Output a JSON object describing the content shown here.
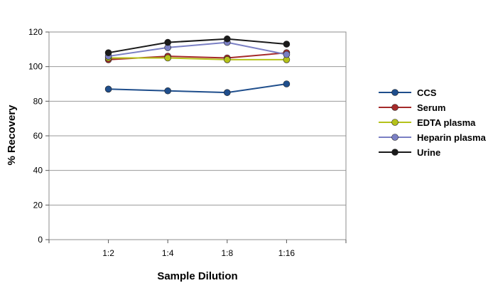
{
  "chart_data": {
    "type": "line",
    "title": "",
    "xlabel": "Sample Dilution",
    "ylabel": "% Recovery",
    "categories": [
      "1:2",
      "1:4",
      "1:8",
      "1:16"
    ],
    "ylim": [
      0,
      120
    ],
    "yticks": [
      0,
      20,
      40,
      60,
      80,
      100,
      120
    ],
    "grid": "horizontal",
    "legend_position": "right",
    "series": [
      {
        "name": "CCS",
        "color": "#1f4e8c",
        "values": [
          87,
          86,
          85,
          90
        ]
      },
      {
        "name": "Serum",
        "color": "#a52a2a",
        "values": [
          104,
          106,
          105,
          108
        ]
      },
      {
        "name": "EDTA plasma",
        "color": "#b5c21a",
        "values": [
          105,
          105,
          104,
          104
        ]
      },
      {
        "name": "Heparin plasma",
        "color": "#7a7fc4",
        "values": [
          106,
          111,
          114,
          107
        ]
      },
      {
        "name": "Urine",
        "color": "#1a1a1a",
        "values": [
          108,
          114,
          116,
          113
        ]
      }
    ]
  }
}
